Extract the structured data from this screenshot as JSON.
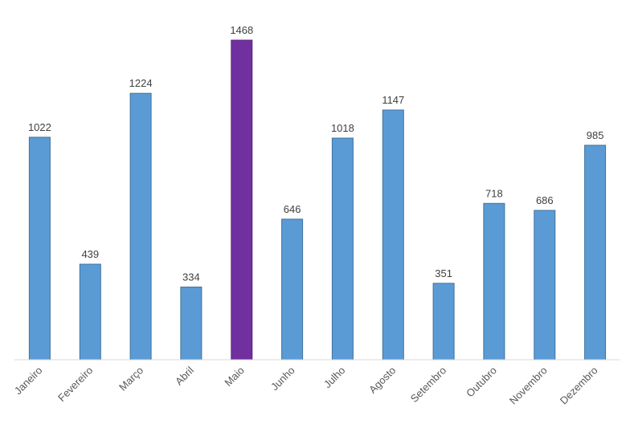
{
  "chart_data": {
    "type": "bar",
    "categories": [
      "Janeiro",
      "Fevereiro",
      "Março",
      "Abril",
      "Maio",
      "Junho",
      "Julho",
      "Agosto",
      "Setembro",
      "Outubro",
      "Novembro",
      "Dezembro"
    ],
    "values": [
      1022,
      439,
      1224,
      334,
      1468,
      646,
      1018,
      1147,
      351,
      718,
      686,
      985
    ],
    "data_labels": [
      "1022",
      "439",
      "1224",
      "334",
      "1468",
      "646",
      "1018",
      "1147",
      "351",
      "718",
      "686",
      "985"
    ],
    "ylim": [
      0,
      1468
    ],
    "grid": false,
    "legend": "none",
    "axis_line": true,
    "tick_label_rotation": -45
  },
  "colors": {
    "bar_fill": "#5b9bd5",
    "bar_stroke": "#41719c",
    "highlight_fill": "#7030a0",
    "highlight_stroke": "#5a2380",
    "axis_line": "#d9d9d9",
    "value_label": "#404040",
    "tick_label": "#595959"
  },
  "highlight_category": "Maio"
}
